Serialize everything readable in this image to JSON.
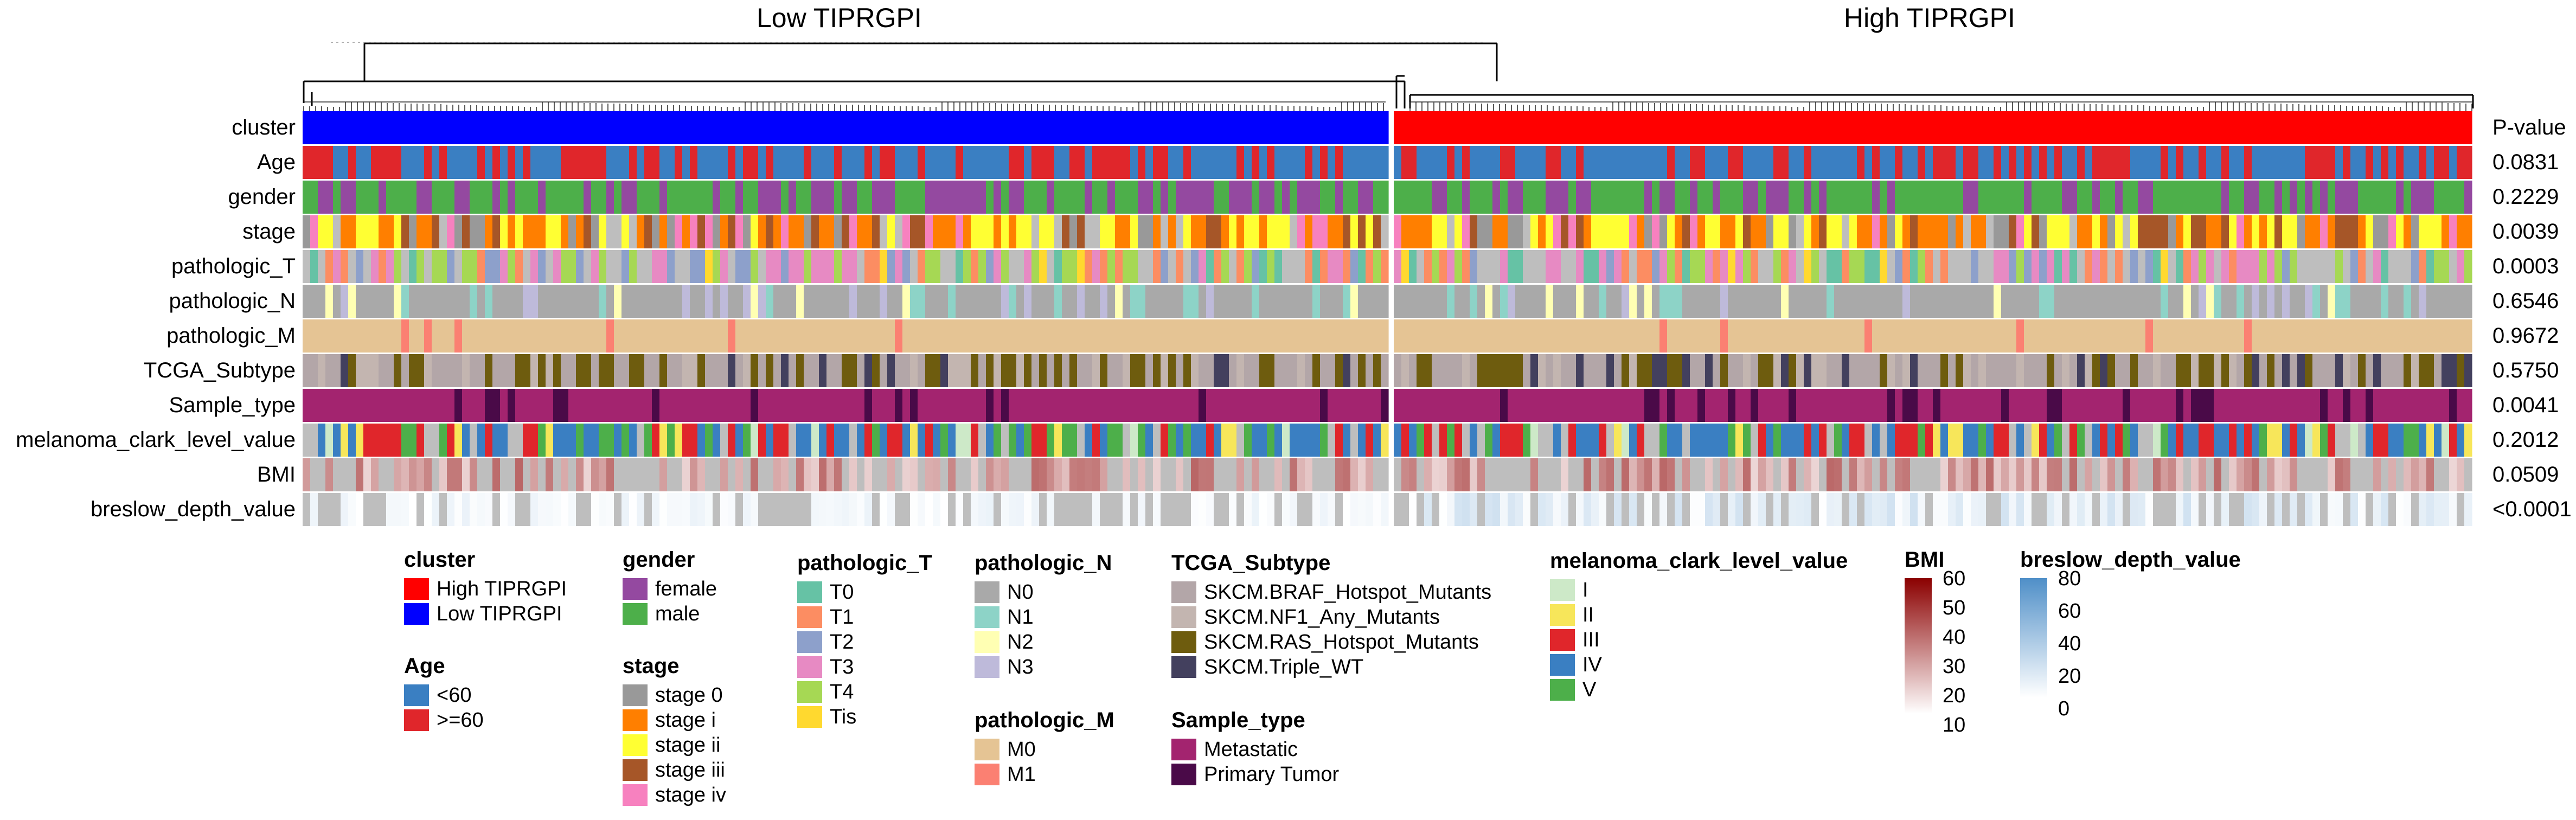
{
  "chart_data": {
    "type": "heatmap",
    "title": "",
    "group_titles": [
      "Low TIPRGPI",
      "High TIPRGPI"
    ],
    "pvalue_header": "P-value",
    "rows": [
      {
        "name": "cluster",
        "pvalue": ""
      },
      {
        "name": "Age",
        "pvalue": "0.0831"
      },
      {
        "name": "gender",
        "pvalue": "0.2229"
      },
      {
        "name": "stage",
        "pvalue": "0.0039"
      },
      {
        "name": "pathologic_T",
        "pvalue": "0.0003"
      },
      {
        "name": "pathologic_N",
        "pvalue": "0.6546"
      },
      {
        "name": "pathologic_M",
        "pvalue": "0.9672"
      },
      {
        "name": "TCGA_Subtype",
        "pvalue": "0.5750"
      },
      {
        "name": "Sample_type",
        "pvalue": "0.0041"
      },
      {
        "name": "melanoma_clark_level_value",
        "pvalue": "0.2012"
      },
      {
        "name": "BMI",
        "pvalue": "0.0509"
      },
      {
        "name": "breslow_depth_value",
        "pvalue": "<0.0001"
      }
    ],
    "legends": [
      {
        "title": "cluster",
        "items": [
          {
            "label": "High TIPRGPI",
            "color": "#FF0000"
          },
          {
            "label": "Low TIPRGPI",
            "color": "#0000FF"
          }
        ]
      },
      {
        "title": "Age",
        "items": [
          {
            "label": "<60",
            "color": "#3A7FC2"
          },
          {
            "label": ">=60",
            "color": "#E0262B"
          }
        ]
      },
      {
        "title": "gender",
        "items": [
          {
            "label": "female",
            "color": "#9449A0"
          },
          {
            "label": "male",
            "color": "#4DAF4A"
          }
        ]
      },
      {
        "title": "stage",
        "items": [
          {
            "label": "stage 0",
            "color": "#999999"
          },
          {
            "label": "stage i",
            "color": "#FF7F00"
          },
          {
            "label": "stage ii",
            "color": "#FFFF33"
          },
          {
            "label": "stage iii",
            "color": "#A65628"
          },
          {
            "label": "stage iv",
            "color": "#F781BF"
          }
        ]
      },
      {
        "title": "pathologic_T",
        "items": [
          {
            "label": "T0",
            "color": "#66C2A5"
          },
          {
            "label": "T1",
            "color": "#FC8D62"
          },
          {
            "label": "T2",
            "color": "#8DA0CB"
          },
          {
            "label": "T3",
            "color": "#E78AC3"
          },
          {
            "label": "T4",
            "color": "#A6D854"
          },
          {
            "label": "Tis",
            "color": "#FFD92F"
          }
        ]
      },
      {
        "title": "pathologic_N",
        "items": [
          {
            "label": "N0",
            "color": "#A9A9A9"
          },
          {
            "label": "N1",
            "color": "#8DD3C7"
          },
          {
            "label": "N2",
            "color": "#FFFFB3"
          },
          {
            "label": "N3",
            "color": "#BEBADA"
          }
        ]
      },
      {
        "title": "pathologic_M",
        "items": [
          {
            "label": "M0",
            "color": "#E5C494"
          },
          {
            "label": "M1",
            "color": "#FB8072"
          }
        ]
      },
      {
        "title": "TCGA_Subtype",
        "items": [
          {
            "label": "SKCM.BRAF_Hotspot_Mutants",
            "color": "#B3A6A8"
          },
          {
            "label": "SKCM.NF1_Any_Mutants",
            "color": "#C3B5B0"
          },
          {
            "label": "SKCM.RAS_Hotspot_Mutants",
            "color": "#6E5C0E"
          },
          {
            "label": "SKCM.Triple_WT",
            "color": "#43405E"
          }
        ]
      },
      {
        "title": "Sample_type",
        "items": [
          {
            "label": "Metastatic",
            "color": "#A3246F"
          },
          {
            "label": "Primary Tumor",
            "color": "#4A0A48"
          }
        ]
      },
      {
        "title": "melanoma_clark_level_value",
        "items": [
          {
            "label": "I",
            "color": "#CDE9C8"
          },
          {
            "label": "II",
            "color": "#F7E65A"
          },
          {
            "label": "III",
            "color": "#E0262B"
          },
          {
            "label": "IV",
            "color": "#3A7FC2"
          },
          {
            "label": "V",
            "color": "#4DAF4A"
          }
        ]
      }
    ],
    "colorbars": [
      {
        "title": "BMI",
        "ticks": [
          "60",
          "50",
          "40",
          "30",
          "20",
          "10"
        ],
        "range": [
          10,
          60
        ],
        "low_color": "#FFFFFF",
        "high_color": "#8B0000"
      },
      {
        "title": "breslow_depth_value",
        "ticks": [
          "80",
          "60",
          "40",
          "20",
          "0"
        ],
        "range": [
          0,
          80
        ],
        "low_color": "#FFFFFF",
        "high_color": "#4F8FC8"
      }
    ],
    "na_color": "#BEBEBE"
  }
}
